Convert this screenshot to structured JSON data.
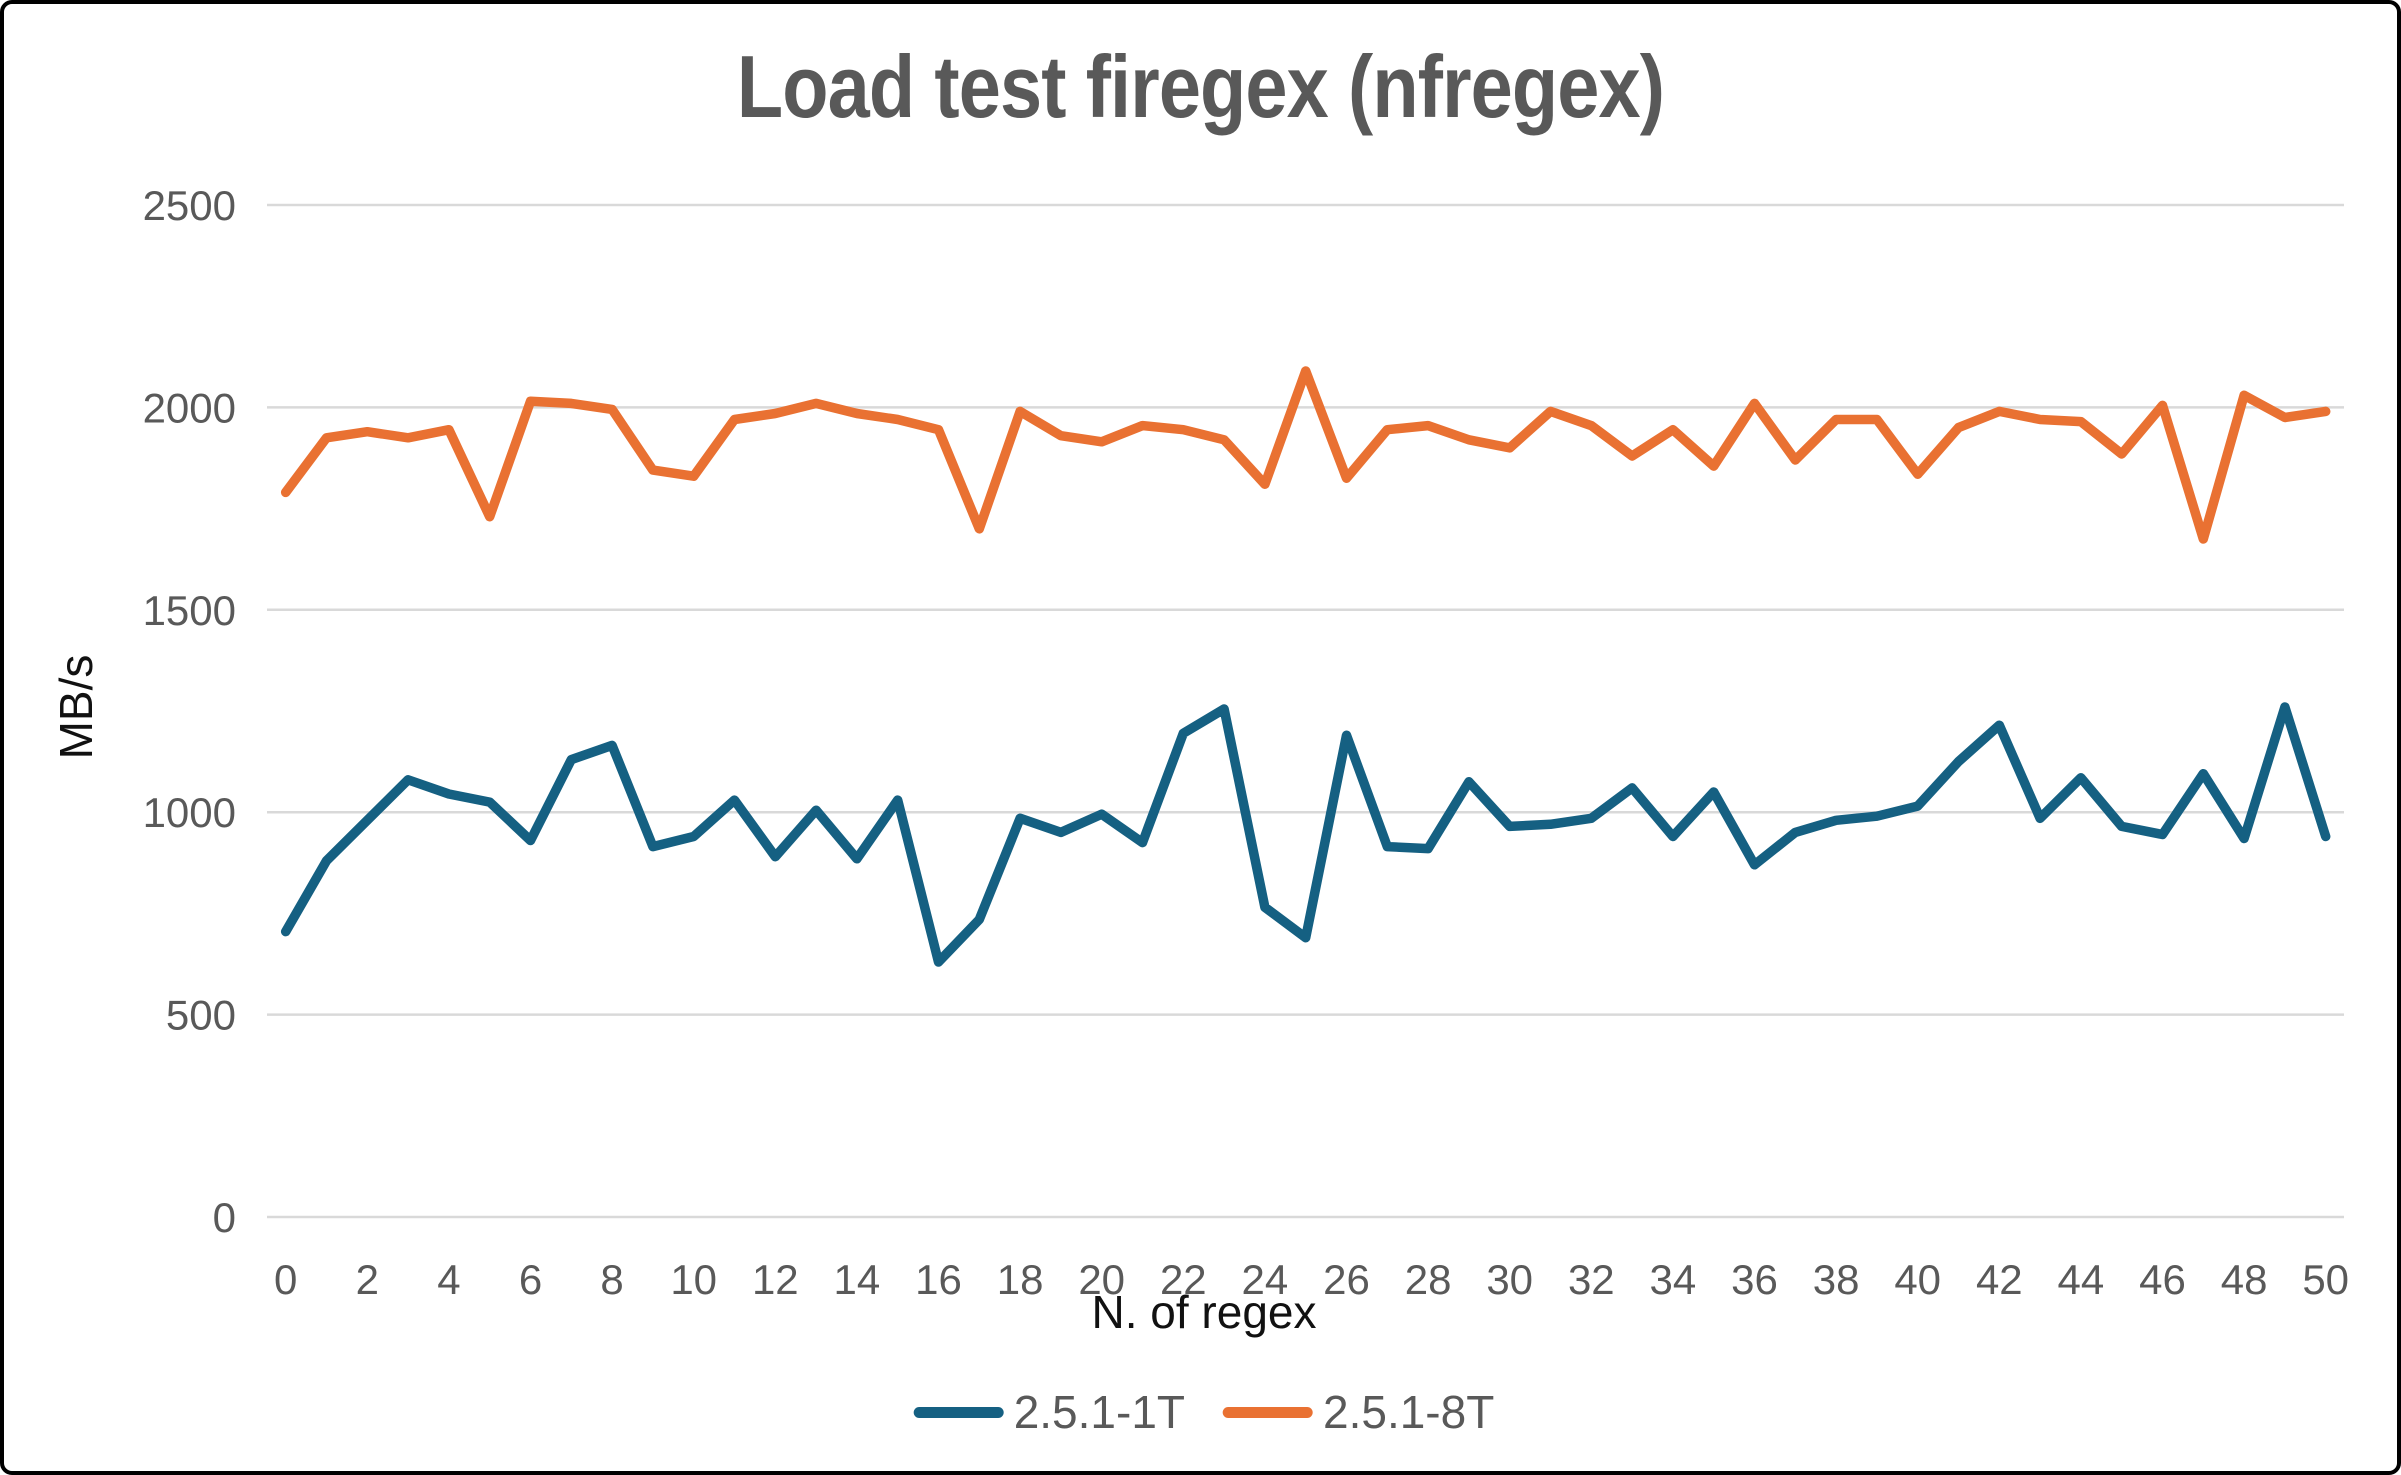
{
  "title": "Load test firegex (nfregex)",
  "y_axis": {
    "label": "MB/s",
    "ticks": [
      0,
      500,
      1000,
      1500,
      2000,
      2500
    ]
  },
  "x_axis": {
    "label": "N. of regex",
    "tick_labels": [
      0,
      2,
      4,
      6,
      8,
      10,
      12,
      14,
      16,
      18,
      20,
      22,
      24,
      26,
      28,
      30,
      32,
      34,
      36,
      38,
      40,
      42,
      44,
      46,
      48,
      50
    ]
  },
  "legend": {
    "items": [
      {
        "label": "2.5.1-1T",
        "color": "#156082"
      },
      {
        "label": "2.5.1-8T",
        "color": "#E97132"
      }
    ]
  },
  "colors": {
    "gridline": "#D9D9D9",
    "tick_text": "#595959",
    "title_text": "#595959",
    "axis_title_text": "#111111"
  },
  "chart_data": {
    "type": "line",
    "title": "Load test firegex (nfregex)",
    "xlabel": "N. of regex",
    "ylabel": "MB/s",
    "ylim": [
      0,
      2500
    ],
    "xlim": [
      0,
      50
    ],
    "grid": "horizontal",
    "legend_position": "bottom",
    "x": [
      0,
      1,
      2,
      3,
      4,
      5,
      6,
      7,
      8,
      9,
      10,
      11,
      12,
      13,
      14,
      15,
      16,
      17,
      18,
      19,
      20,
      21,
      22,
      23,
      24,
      25,
      26,
      27,
      28,
      29,
      30,
      31,
      32,
      33,
      34,
      35,
      36,
      37,
      38,
      39,
      40,
      41,
      42,
      43,
      44,
      45,
      46,
      47,
      48,
      49,
      50
    ],
    "series": [
      {
        "name": "2.5.1-1T",
        "color": "#156082",
        "values": [
          705,
          880,
          980,
          1080,
          1045,
          1025,
          930,
          1130,
          1165,
          915,
          940,
          1030,
          890,
          1005,
          885,
          1030,
          630,
          735,
          985,
          950,
          995,
          925,
          1195,
          1255,
          765,
          690,
          1190,
          915,
          910,
          1075,
          965,
          970,
          985,
          1060,
          940,
          1050,
          870,
          950,
          980,
          990,
          1015,
          1125,
          1215,
          985,
          1085,
          965,
          945,
          1095,
          935,
          1260,
          940
        ]
      },
      {
        "name": "2.5.1-8T",
        "color": "#E97132",
        "values": [
          1790,
          1925,
          1940,
          1925,
          1945,
          1730,
          2015,
          2010,
          1995,
          1845,
          1830,
          1970,
          1985,
          2010,
          1985,
          1970,
          1945,
          1700,
          1990,
          1930,
          1915,
          1955,
          1945,
          1920,
          1810,
          2090,
          1825,
          1945,
          1955,
          1920,
          1900,
          1990,
          1955,
          1880,
          1945,
          1855,
          2010,
          1870,
          1970,
          1970,
          1835,
          1950,
          1990,
          1970,
          1965,
          1885,
          2005,
          1675,
          2030,
          1975,
          1990
        ]
      }
    ]
  }
}
